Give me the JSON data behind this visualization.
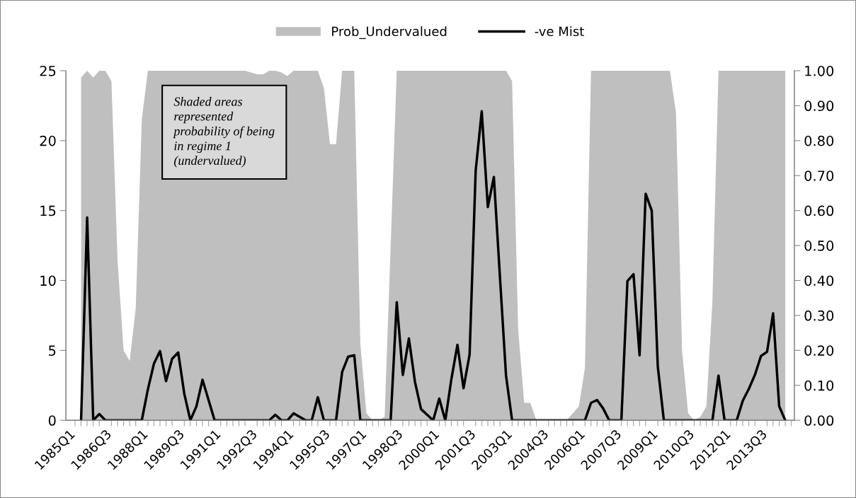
{
  "chart_data": {
    "type": "line",
    "categories": [
      "1985Q1",
      null,
      null,
      null,
      null,
      null,
      "1986Q3",
      null,
      null,
      null,
      null,
      null,
      "1988Q1",
      null,
      null,
      null,
      null,
      null,
      "1989Q3",
      null,
      null,
      null,
      null,
      null,
      "1991Q1",
      null,
      null,
      null,
      null,
      null,
      "1992Q3",
      null,
      null,
      null,
      null,
      null,
      "1994Q1",
      null,
      null,
      null,
      null,
      null,
      "1995Q3",
      null,
      null,
      null,
      null,
      null,
      "1997Q1",
      null,
      null,
      null,
      null,
      null,
      "1998Q3",
      null,
      null,
      null,
      null,
      null,
      "2000Q1",
      null,
      null,
      null,
      null,
      null,
      "2001Q3",
      null,
      null,
      null,
      null,
      null,
      "2003Q1",
      null,
      null,
      null,
      null,
      null,
      "2004Q3",
      null,
      null,
      null,
      null,
      null,
      "2006Q1",
      null,
      null,
      null,
      null,
      null,
      "2007Q3",
      null,
      null,
      null,
      null,
      null,
      "2009Q1",
      null,
      null,
      null,
      null,
      null,
      "2010Q3",
      null,
      null,
      null,
      null,
      null,
      "2012Q1",
      null,
      null,
      null,
      null,
      null,
      "2013Q3",
      null,
      null,
      null,
      null,
      null
    ],
    "series": [
      {
        "name": "Prob_Undervalued",
        "type": "area",
        "axis": "y2",
        "color": "#bfbfbf",
        "values": [
          null,
          null,
          0.98,
          1.0,
          0.98,
          1.0,
          1.0,
          0.97,
          0.46,
          0.2,
          0.17,
          0.32,
          0.86,
          1.0,
          1.0,
          1.0,
          1.0,
          1.0,
          1.0,
          1.0,
          1.0,
          1.0,
          1.0,
          1.0,
          1.0,
          1.0,
          1.0,
          1.0,
          1.0,
          1.0,
          0.995,
          0.99,
          0.99,
          1.0,
          1.0,
          0.995,
          0.985,
          1.0,
          1.0,
          1.0,
          1.0,
          1.0,
          0.95,
          0.79,
          0.79,
          1.0,
          1.0,
          1.0,
          0.22,
          0.02,
          0,
          0,
          0.01,
          0.5,
          1.0,
          1.0,
          1.0,
          1.0,
          1.0,
          1.0,
          1.0,
          1.0,
          1.0,
          1.0,
          1.0,
          1.0,
          1.0,
          1.0,
          1.0,
          1.0,
          1.0,
          1.0,
          1.0,
          0.97,
          0.26,
          0.05,
          0.05,
          0,
          0,
          0,
          0,
          0,
          0,
          0.02,
          0.04,
          0.15,
          1.0,
          1.0,
          1.0,
          1.0,
          1.0,
          1.0,
          1.0,
          1.0,
          1.0,
          1.0,
          1.0,
          1.0,
          1.0,
          1.0,
          0.88,
          0.2,
          0.02,
          0,
          0.01,
          0.04,
          0.34,
          1.0,
          1.0,
          1.0,
          1.0,
          1.0,
          1.0,
          1.0,
          1.0,
          1.0,
          1.0,
          1.0,
          1.0,
          null
        ]
      },
      {
        "name": "-ve Mist",
        "color": "#000000",
        "values": [
          null,
          null,
          0,
          14.5,
          0,
          0.45,
          0,
          0,
          0,
          0,
          0,
          0,
          0,
          2.2,
          4.05,
          4.95,
          2.8,
          4.4,
          4.85,
          1.9,
          0,
          1.0,
          2.9,
          1.45,
          0,
          0,
          0,
          0,
          0,
          0,
          0,
          0,
          0,
          0,
          0.4,
          0,
          0,
          0.5,
          0.25,
          0,
          0,
          1.65,
          0,
          0,
          0,
          3.45,
          4.55,
          4.65,
          0,
          0,
          0,
          0,
          0,
          0,
          8.45,
          3.25,
          5.85,
          2.75,
          0.8,
          0.4,
          0,
          1.55,
          0,
          2.95,
          5.4,
          2.3,
          4.7,
          17.85,
          22.1,
          15.25,
          17.4,
          10.25,
          3.2,
          0,
          0,
          0,
          0,
          0,
          0,
          0,
          0,
          0,
          0,
          0,
          0,
          0,
          1.25,
          1.45,
          0.85,
          0,
          0,
          0,
          9.95,
          10.45,
          4.65,
          16.2,
          15.0,
          3.85,
          0,
          0,
          0,
          0,
          0,
          0,
          0,
          0,
          0,
          3.2,
          0,
          0,
          0,
          1.4,
          2.25,
          3.25,
          4.6,
          4.9,
          7.65,
          1.0,
          0,
          null
        ]
      }
    ],
    "ylim": [
      0,
      25
    ],
    "yticks": [
      0,
      5,
      10,
      15,
      20,
      25
    ],
    "y2lim": [
      0,
      1
    ],
    "y2ticks": [
      {
        "value": 0,
        "label": "0.00"
      },
      {
        "value": 0.1,
        "label": "0.10"
      },
      {
        "value": 0.2,
        "label": "0.20"
      },
      {
        "value": 0.3,
        "label": "0.30"
      },
      {
        "value": 0.4,
        "label": "0.40"
      },
      {
        "value": 0.5,
        "label": "0.50"
      },
      {
        "value": 0.6,
        "label": "0.60"
      },
      {
        "value": 0.7,
        "label": "0.70"
      },
      {
        "value": 0.8,
        "label": "0.80"
      },
      {
        "value": 0.9,
        "label": "0.90"
      },
      {
        "value": 1,
        "label": "1.00"
      }
    ],
    "annotations": [
      "Shaded areas\nrepresented\nprobability of being\nin regime 1\n(undervalued)"
    ],
    "legend": "top",
    "grid": false,
    "marker": "none",
    "line_style": "solid"
  }
}
